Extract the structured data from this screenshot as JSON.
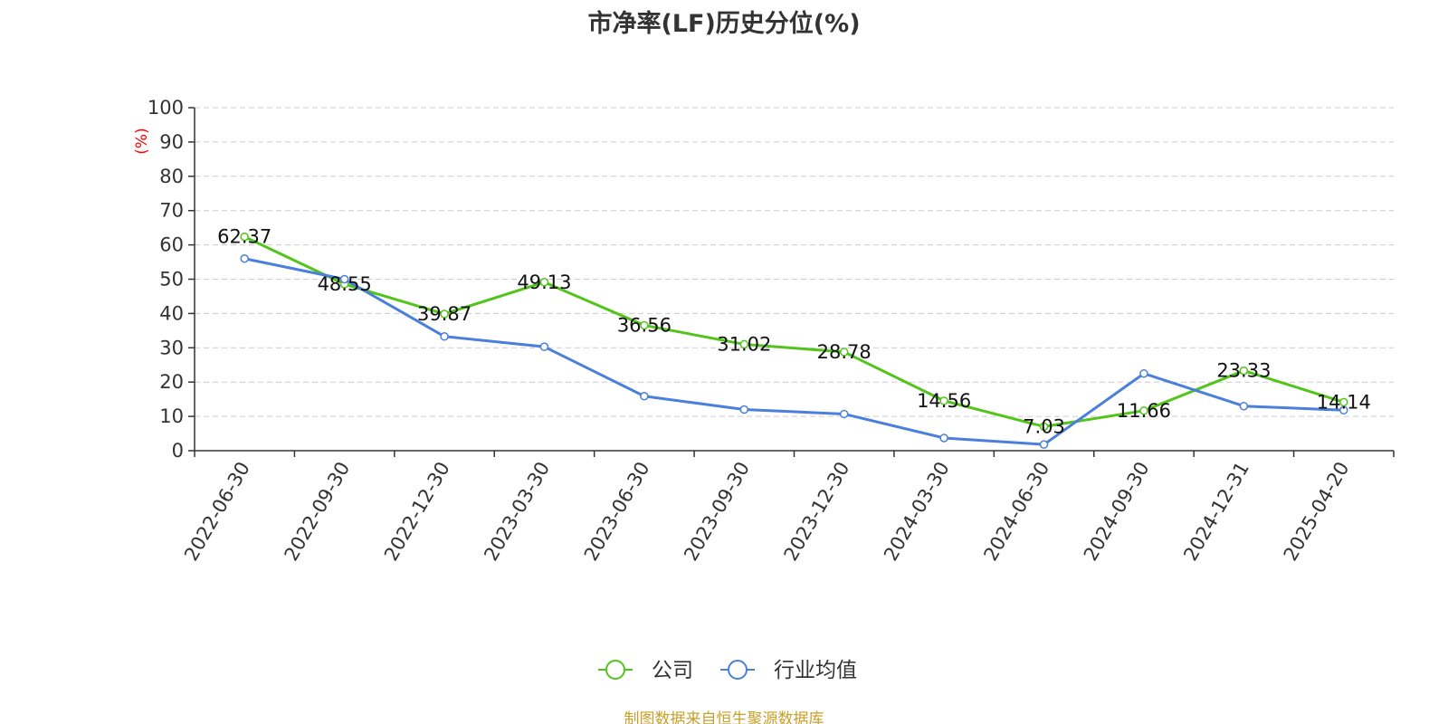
{
  "colors": {
    "company": "#52c41a",
    "industry": "#4a7fdc",
    "axis": "#333333",
    "grid": "#cccccc",
    "unit": "#ff0000",
    "source": "#c8a028"
  },
  "chart_data": {
    "type": "line",
    "title": "市净率(LF)历史分位(%)",
    "ylabel": "(%)",
    "ylim": [
      0,
      100
    ],
    "yticks": [
      0,
      10,
      20,
      30,
      40,
      50,
      60,
      70,
      80,
      90,
      100
    ],
    "categories": [
      "2022-06-30",
      "2022-09-30",
      "2022-12-30",
      "2023-03-30",
      "2023-06-30",
      "2023-09-30",
      "2023-12-30",
      "2024-03-30",
      "2024-06-30",
      "2024-09-30",
      "2024-12-31",
      "2025-04-20"
    ],
    "series": [
      {
        "name": "公司",
        "color_key": "company",
        "values": [
          62.37,
          48.55,
          39.87,
          49.13,
          36.56,
          31.02,
          28.78,
          14.56,
          7.03,
          11.66,
          23.33,
          14.14
        ],
        "labels": [
          "62.37",
          "48.55",
          "39.87",
          "49.13",
          "36.56",
          "31.02",
          "28.78",
          "14.56",
          "7.03",
          "11.66",
          "23.33",
          "14.14"
        ]
      },
      {
        "name": "行业均值",
        "color_key": "industry",
        "values": [
          56.0,
          50.0,
          33.3,
          30.3,
          15.9,
          12.0,
          10.7,
          3.7,
          1.8,
          22.5,
          13.0,
          11.8
        ]
      }
    ],
    "grid": true,
    "legend_position": "bottom-center"
  },
  "footer": {
    "source": "制图数据来自恒生聚源数据库"
  }
}
